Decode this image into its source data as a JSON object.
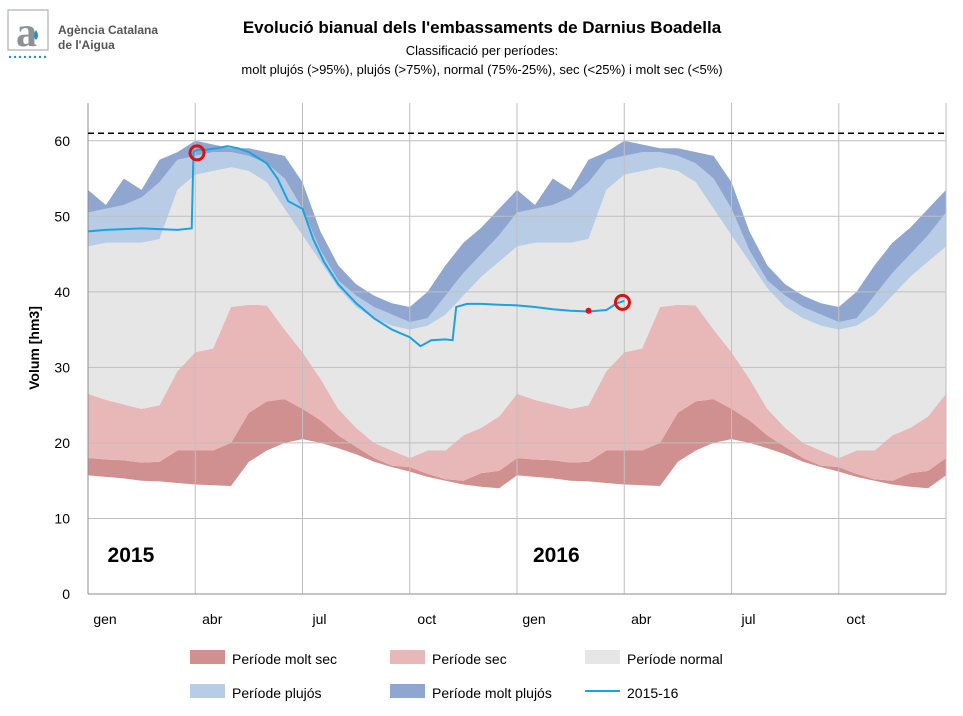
{
  "logo": {
    "line1": "Agència Catalana",
    "line2": "de l'Aigua"
  },
  "chart_data": {
    "type": "area",
    "title": "Evolució bianual dels l'embassaments de Darnius Boadella",
    "subtitle1": "Classificació per períodes:",
    "subtitle2": "molt plujós (>95%), plujós (>75%), normal (75%-25%), sec (<25%) i molt sec (<5%)",
    "ylabel": "Volum [hm3]",
    "ylim": [
      0,
      65
    ],
    "yticks": [
      0,
      10,
      20,
      30,
      40,
      50,
      60
    ],
    "xlim": [
      0,
      24
    ],
    "xticks": [
      {
        "x": 0,
        "label": "gen"
      },
      {
        "x": 3,
        "label": "abr"
      },
      {
        "x": 6,
        "label": "jul"
      },
      {
        "x": 9,
        "label": "oct"
      },
      {
        "x": 12,
        "label": "gen"
      },
      {
        "x": 15,
        "label": "abr"
      },
      {
        "x": 18,
        "label": "jul"
      },
      {
        "x": 21,
        "label": "oct"
      }
    ],
    "year_labels": [
      {
        "x": 1.2,
        "y": 5,
        "label": "2015"
      },
      {
        "x": 13.1,
        "y": 5,
        "label": "2016"
      }
    ],
    "capacity_line": 61,
    "x": [
      0,
      0.5,
      1,
      1.5,
      2,
      2.5,
      3,
      3.5,
      4,
      4.5,
      5,
      5.5,
      6,
      6.5,
      7,
      7.5,
      8,
      8.5,
      9,
      9.5,
      10,
      10.5,
      11,
      11.5,
      12
    ],
    "bands": {
      "min": [
        15.7,
        15.5,
        15.3,
        15.0,
        14.9,
        14.7,
        14.5,
        14.4,
        14.3,
        17.5,
        19.0,
        20.0,
        20.5,
        20.0,
        19.3,
        18.5,
        17.5,
        16.8,
        16.2,
        15.5,
        15.0,
        14.5,
        14.2,
        14.0,
        15.7
      ],
      "p5": [
        18.0,
        17.8,
        17.7,
        17.4,
        17.5,
        19.0,
        19.0,
        19.0,
        20.0,
        24.0,
        25.5,
        25.8,
        24.5,
        23.0,
        21.0,
        19.5,
        18.0,
        17.0,
        16.8,
        15.9,
        15.2,
        15.0,
        16.0,
        16.3,
        18.0
      ],
      "p25": [
        26.5,
        25.7,
        25.1,
        24.5,
        25.0,
        29.5,
        32.0,
        32.5,
        38.0,
        38.3,
        38.2,
        35.0,
        32.0,
        28.5,
        24.5,
        22.0,
        20.0,
        19.0,
        18.0,
        19.0,
        19.0,
        21.0,
        22.0,
        23.5,
        26.5
      ],
      "p75": [
        46.0,
        46.5,
        46.5,
        46.5,
        47.0,
        53.5,
        55.5,
        56.0,
        56.5,
        56.0,
        54.5,
        51.0,
        47.5,
        44.0,
        40.5,
        38.0,
        36.5,
        35.5,
        35.0,
        35.5,
        37.0,
        39.5,
        42.0,
        44.0,
        46.0
      ],
      "p95": [
        50.5,
        51.0,
        51.5,
        52.5,
        54.5,
        57.5,
        58.0,
        58.5,
        58.5,
        58.0,
        57.0,
        55.0,
        51.0,
        45.5,
        41.5,
        39.5,
        38.0,
        37.0,
        36.0,
        36.5,
        39.5,
        42.5,
        45.0,
        47.5,
        50.5
      ],
      "max": [
        53.5,
        51.5,
        55.0,
        53.5,
        57.5,
        58.5,
        60.0,
        59.5,
        59.0,
        59.0,
        58.5,
        58.0,
        54.5,
        48.0,
        43.5,
        41.0,
        39.5,
        38.5,
        38.0,
        40.0,
        43.5,
        46.5,
        48.5,
        51.0,
        53.5
      ]
    },
    "series": [
      {
        "name": "2015-16",
        "x": [
          0,
          0.5,
          1.0,
          1.5,
          2.0,
          2.5,
          2.9,
          2.95,
          3.05,
          3.3,
          3.6,
          3.9,
          4.2,
          4.5,
          5.0,
          5.3,
          5.6,
          6.0,
          6.3,
          6.6,
          7.0,
          7.5,
          8.0,
          8.5,
          9.0,
          9.3,
          9.6,
          10.0,
          10.2,
          10.3,
          10.6,
          11.0,
          11.5,
          12.0,
          12.5,
          13.0,
          13.5,
          14.0,
          14.5,
          14.8,
          15.0
        ],
        "y": [
          48.0,
          48.2,
          48.3,
          48.4,
          48.3,
          48.2,
          48.4,
          58.5,
          58.8,
          58.8,
          59.0,
          59.3,
          59.0,
          58.5,
          57.0,
          55.0,
          52.0,
          51.0,
          47.0,
          44.0,
          41.0,
          38.5,
          36.5,
          35.0,
          34.0,
          32.8,
          33.6,
          33.7,
          33.6,
          38.0,
          38.4,
          38.4,
          38.3,
          38.2,
          38.0,
          37.7,
          37.5,
          37.4,
          37.6,
          38.5,
          38.8
        ]
      }
    ],
    "markers": [
      {
        "x": 3.05,
        "y": 58.4,
        "type": "ring"
      },
      {
        "x": 14.95,
        "y": 38.6,
        "type": "ring"
      },
      {
        "x": 14.0,
        "y": 37.5,
        "type": "dot"
      }
    ],
    "legend": [
      {
        "label": "Període molt sec",
        "color": "#d09090",
        "kind": "box"
      },
      {
        "label": "Període sec",
        "color": "#e8b8b8",
        "kind": "box"
      },
      {
        "label": "Període normal",
        "color": "#e6e6e6",
        "kind": "box"
      },
      {
        "label": "Període plujós",
        "color": "#b8cce6",
        "kind": "box"
      },
      {
        "label": "Període molt plujós",
        "color": "#8fa6d0",
        "kind": "box"
      },
      {
        "label": "2015-16",
        "color": "#1aa3e0",
        "kind": "line"
      }
    ],
    "colors": {
      "molt_sec": "#d09090",
      "sec": "#e8b8b8",
      "normal": "#e6e6e6",
      "plujos": "#b8cce6",
      "molt_plujos": "#8fa6d0",
      "line": "#1aa3e0",
      "marker": "#e01010",
      "grid": "#bfbfbf"
    },
    "grid": true,
    "legend_position": "bottom"
  }
}
